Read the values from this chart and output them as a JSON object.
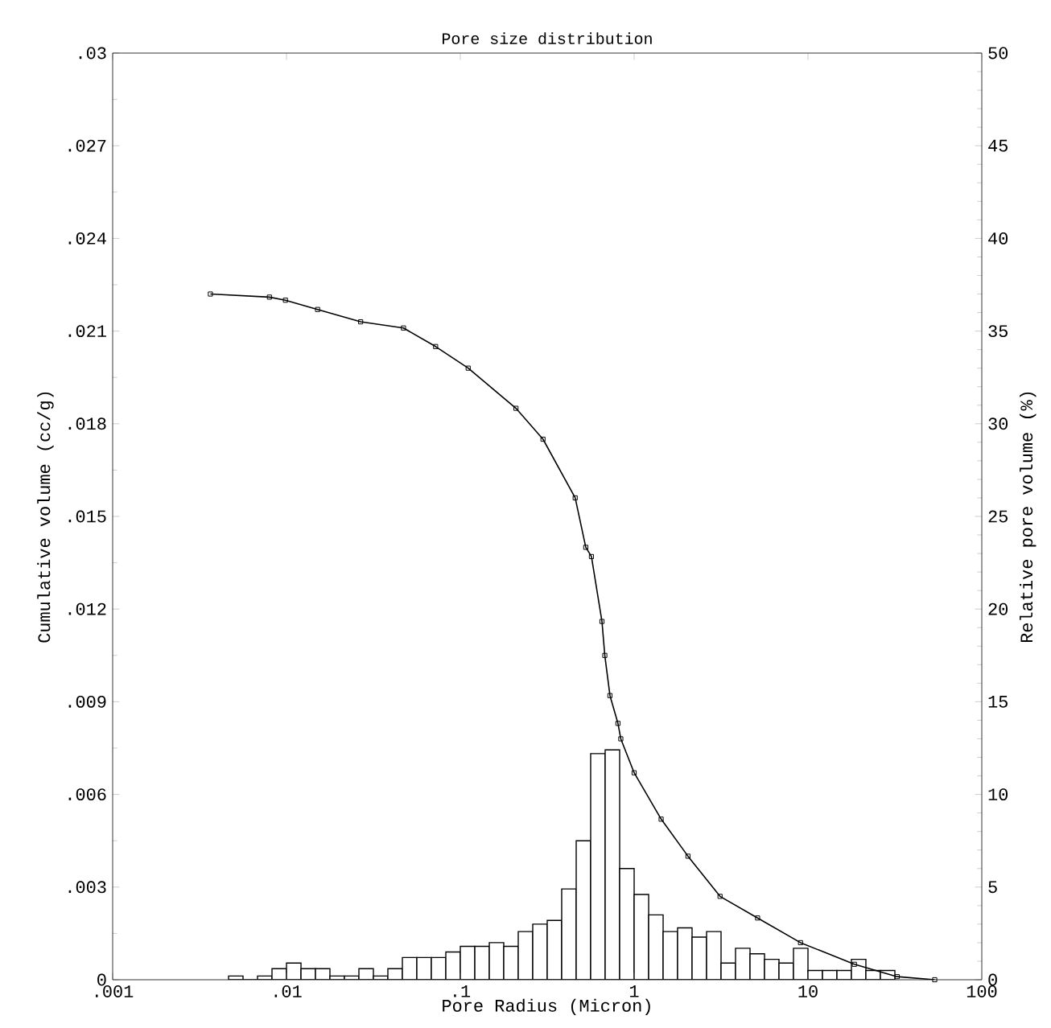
{
  "chart_data": {
    "type": "line",
    "title": "Pore size distribution",
    "xlabel": "Pore Radius (Micron)",
    "ylabel": "Cumulative volume (cc/g)",
    "y2label": "Relative pore volume (%)",
    "log": "x",
    "marker": "square",
    "xlim": [
      0.001,
      100
    ],
    "xticks": [
      {
        "value": 0.001,
        "label": ".001"
      },
      {
        "value": 0.01,
        "label": ".01"
      },
      {
        "value": 0.1,
        "label": ".1"
      },
      1,
      10,
      100
    ],
    "ylim": [
      0,
      0.03
    ],
    "yticks": [
      0,
      {
        "value": 0.003,
        "label": ".003"
      },
      {
        "value": 0.006,
        "label": ".006"
      },
      {
        "value": 0.009,
        "label": ".009"
      },
      {
        "value": 0.012,
        "label": ".012"
      },
      {
        "value": 0.015,
        "label": ".015"
      },
      {
        "value": 0.018,
        "label": ".018"
      },
      {
        "value": 0.021,
        "label": ".021"
      },
      {
        "value": 0.024,
        "label": ".024"
      },
      {
        "value": 0.027,
        "label": ".027"
      },
      {
        "value": 0.03,
        "label": ".03"
      }
    ],
    "y2lim": [
      0,
      50
    ],
    "y2ticks": [
      0,
      5,
      10,
      15,
      20,
      25,
      30,
      35,
      40,
      45,
      50
    ],
    "series": [
      {
        "type": "histogram",
        "axis": "y2",
        "color": "#ffffff",
        "bins": [
          0.004642,
          0.005623,
          0.006813,
          0.008254,
          0.01,
          0.01212,
          0.01468,
          0.01778,
          0.02154,
          0.0261,
          0.03162,
          0.03831,
          0.04642,
          0.05623,
          0.06813,
          0.08254,
          0.1,
          0.1212,
          0.1468,
          0.1778,
          0.2154,
          0.261,
          0.3162,
          0.3831,
          0.4642,
          0.5623,
          0.6813,
          0.8254,
          1,
          1.212,
          1.468,
          1.778,
          2.154,
          2.61,
          3.162,
          3.831,
          4.642,
          5.623,
          6.813,
          8.254,
          10,
          12.12,
          14.68,
          17.78,
          21.54,
          26.1,
          31.62
        ],
        "values": [
          0.2,
          0,
          0.2,
          0.6,
          0.9,
          0.6,
          0.6,
          0.2,
          0.2,
          0.6,
          0.2,
          0.6,
          1.2,
          1.2,
          1.2,
          1.5,
          1.8,
          1.8,
          2,
          1.8,
          2.6,
          3,
          3.2,
          4.9,
          7.5,
          12.2,
          12.4,
          6,
          4.6,
          3.5,
          2.6,
          2.8,
          2.3,
          2.6,
          0.9,
          1.7,
          1.4,
          1.1,
          0.9,
          1.7,
          0.5,
          0.5,
          0.5,
          1.1,
          0.5,
          0.5
        ]
      },
      {
        "axis": "y",
        "color": "#000000",
        "x": [
          0.00365,
          0.00798,
          0.00986,
          0.0151,
          0.0267,
          0.0471,
          0.0721,
          0.111,
          0.209,
          0.299,
          0.458,
          0.527,
          0.568,
          0.653,
          0.678,
          0.726,
          0.807,
          0.838,
          1.0,
          1.43,
          2.04,
          3.12,
          5.13,
          9.06,
          18.5,
          32.6,
          53.6
        ],
        "values": [
          0.0222,
          0.0221,
          0.022,
          0.0217,
          0.0213,
          0.0211,
          0.0205,
          0.0198,
          0.0185,
          0.0175,
          0.0156,
          0.014,
          0.0137,
          0.0116,
          0.0105,
          0.0092,
          0.0083,
          0.0078,
          0.0067,
          0.0052,
          0.004,
          0.0027,
          0.002,
          0.0012,
          0.0005,
          0.0001,
          0
        ]
      }
    ]
  }
}
